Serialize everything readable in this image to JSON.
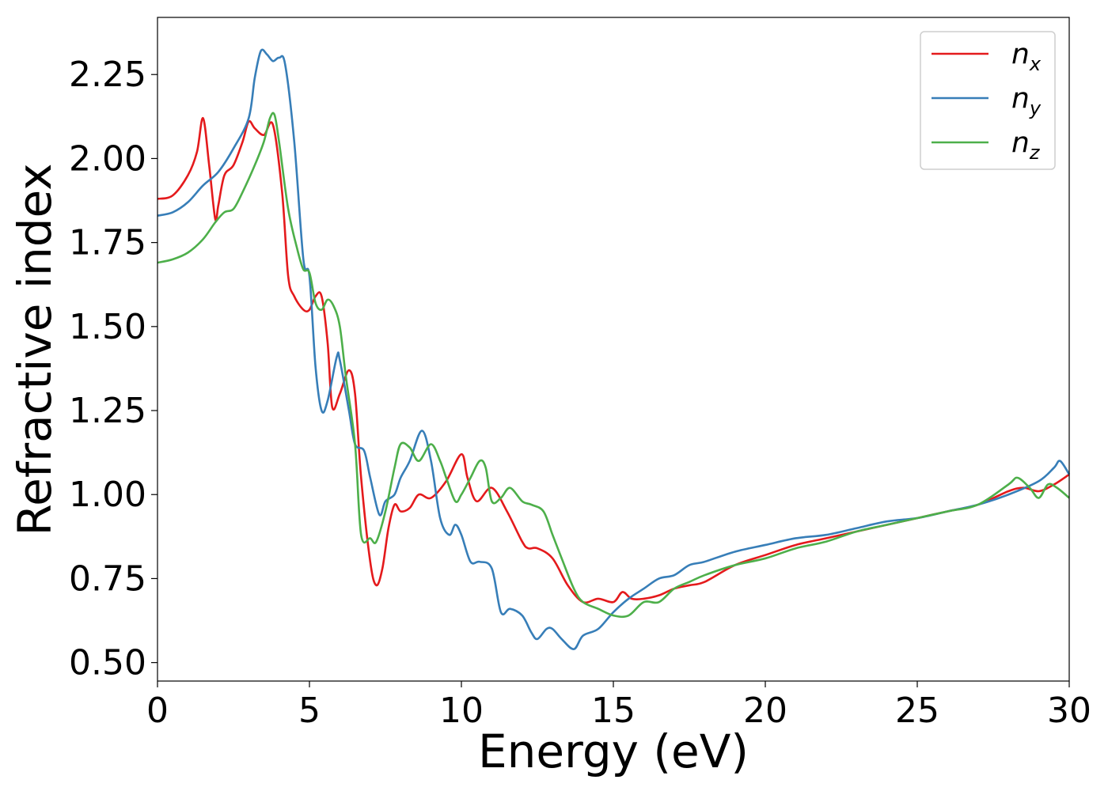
{
  "chart_data": {
    "type": "line",
    "title": "",
    "xlabel": "Energy (eV)",
    "ylabel": "Refractive index",
    "xlim": [
      0,
      30
    ],
    "ylim": [
      0.445,
      2.42
    ],
    "xticks": [
      0,
      5,
      10,
      15,
      20,
      25,
      30
    ],
    "xtick_labels": [
      "0",
      "5",
      "10",
      "15",
      "20",
      "25",
      "30"
    ],
    "yticks": [
      0.5,
      0.75,
      1.0,
      1.25,
      1.5,
      1.75,
      2.0,
      2.25
    ],
    "ytick_labels": [
      "0.50",
      "0.75",
      "1.00",
      "1.25",
      "1.50",
      "1.75",
      "2.00",
      "2.25"
    ],
    "grid": false,
    "legend_position": "top-right",
    "legend": [
      {
        "base": "n",
        "sub": "x",
        "color": "#e41a1c"
      },
      {
        "base": "n",
        "sub": "y",
        "color": "#377eb8"
      },
      {
        "base": "n",
        "sub": "z",
        "color": "#4daf4a"
      }
    ],
    "series": [
      {
        "name": "n_x",
        "color": "#e41a1c",
        "x": [
          0,
          0.5,
          1.0,
          1.3,
          1.5,
          1.7,
          1.9,
          2.0,
          2.2,
          2.5,
          2.8,
          3.0,
          3.2,
          3.5,
          3.8,
          4.1,
          4.3,
          4.5,
          4.8,
          5.0,
          5.2,
          5.4,
          5.6,
          5.75,
          6.0,
          6.3,
          6.5,
          6.7,
          7.0,
          7.2,
          7.4,
          7.6,
          7.8,
          8.0,
          8.3,
          8.6,
          9.0,
          9.5,
          10.0,
          10.2,
          10.5,
          11.0,
          11.5,
          12.0,
          12.2,
          12.5,
          13.0,
          13.5,
          14.0,
          14.5,
          15.0,
          15.3,
          15.6,
          16.0,
          16.5,
          17.0,
          17.5,
          18.0,
          19.0,
          20.0,
          21.0,
          22.0,
          23.0,
          24.0,
          25.0,
          26.0,
          27.0,
          28.0,
          28.5,
          29.0,
          29.5,
          30.0
        ],
        "y": [
          1.88,
          1.89,
          1.95,
          2.02,
          2.12,
          1.98,
          1.82,
          1.86,
          1.95,
          1.98,
          2.05,
          2.11,
          2.09,
          2.07,
          2.1,
          1.9,
          1.65,
          1.59,
          1.55,
          1.55,
          1.59,
          1.59,
          1.45,
          1.26,
          1.3,
          1.37,
          1.3,
          1.05,
          0.8,
          0.73,
          0.78,
          0.9,
          0.97,
          0.95,
          0.96,
          1.0,
          0.99,
          1.04,
          1.12,
          1.05,
          0.98,
          1.02,
          0.95,
          0.86,
          0.84,
          0.84,
          0.81,
          0.73,
          0.68,
          0.69,
          0.68,
          0.71,
          0.69,
          0.69,
          0.7,
          0.72,
          0.73,
          0.74,
          0.79,
          0.82,
          0.85,
          0.87,
          0.89,
          0.91,
          0.93,
          0.95,
          0.97,
          1.01,
          1.02,
          1.01,
          1.03,
          1.06
        ]
      },
      {
        "name": "n_y",
        "color": "#377eb8",
        "x": [
          0,
          0.5,
          1.0,
          1.5,
          2.0,
          2.5,
          3.0,
          3.2,
          3.4,
          3.6,
          3.8,
          4.0,
          4.2,
          4.5,
          4.8,
          5.0,
          5.2,
          5.4,
          5.6,
          5.9,
          6.0,
          6.3,
          6.5,
          6.8,
          7.0,
          7.3,
          7.5,
          7.8,
          8.0,
          8.3,
          8.7,
          9.0,
          9.3,
          9.6,
          9.8,
          10.0,
          10.3,
          10.6,
          11.0,
          11.3,
          11.6,
          12.0,
          12.3,
          12.5,
          12.8,
          13.0,
          13.3,
          13.7,
          14.0,
          14.5,
          15.0,
          15.5,
          16.0,
          16.5,
          17.0,
          17.5,
          18.0,
          19.0,
          20.0,
          21.0,
          22.0,
          23.0,
          24.0,
          25.0,
          26.0,
          27.0,
          28.0,
          29.0,
          29.5,
          29.7,
          30.0
        ],
        "y": [
          1.83,
          1.84,
          1.87,
          1.92,
          1.96,
          2.03,
          2.12,
          2.24,
          2.32,
          2.31,
          2.29,
          2.3,
          2.28,
          2.05,
          1.7,
          1.65,
          1.38,
          1.25,
          1.28,
          1.41,
          1.4,
          1.25,
          1.15,
          1.13,
          1.05,
          0.94,
          0.98,
          1.0,
          1.05,
          1.1,
          1.19,
          1.1,
          0.93,
          0.88,
          0.91,
          0.88,
          0.8,
          0.8,
          0.78,
          0.65,
          0.66,
          0.64,
          0.59,
          0.57,
          0.6,
          0.6,
          0.57,
          0.54,
          0.58,
          0.6,
          0.65,
          0.69,
          0.72,
          0.75,
          0.76,
          0.79,
          0.8,
          0.83,
          0.85,
          0.87,
          0.88,
          0.9,
          0.92,
          0.93,
          0.95,
          0.97,
          1.0,
          1.04,
          1.08,
          1.1,
          1.06
        ]
      },
      {
        "name": "n_z",
        "color": "#4daf4a",
        "x": [
          0,
          0.5,
          1.0,
          1.5,
          1.9,
          2.2,
          2.5,
          2.8,
          3.2,
          3.5,
          3.7,
          3.85,
          4.0,
          4.3,
          4.6,
          4.8,
          5.0,
          5.2,
          5.4,
          5.6,
          5.8,
          6.0,
          6.2,
          6.5,
          6.7,
          7.0,
          7.2,
          7.5,
          7.8,
          8.0,
          8.3,
          8.6,
          9.0,
          9.3,
          9.5,
          9.8,
          10.0,
          10.3,
          10.6,
          10.8,
          11.0,
          11.3,
          11.6,
          12.0,
          12.3,
          12.7,
          13.0,
          13.3,
          13.7,
          14.0,
          14.5,
          15.0,
          15.5,
          16.0,
          16.5,
          17.0,
          17.5,
          18.0,
          19.0,
          20.0,
          21.0,
          22.0,
          23.0,
          24.0,
          25.0,
          26.0,
          27.0,
          28.0,
          28.3,
          28.7,
          29.0,
          29.3,
          29.6,
          30.0
        ],
        "y": [
          1.69,
          1.7,
          1.72,
          1.76,
          1.81,
          1.84,
          1.85,
          1.9,
          1.98,
          2.05,
          2.12,
          2.13,
          2.05,
          1.85,
          1.73,
          1.67,
          1.66,
          1.57,
          1.55,
          1.58,
          1.56,
          1.5,
          1.35,
          1.15,
          0.88,
          0.87,
          0.86,
          0.95,
          1.08,
          1.15,
          1.14,
          1.1,
          1.15,
          1.1,
          1.05,
          0.98,
          1.0,
          1.05,
          1.1,
          1.08,
          0.98,
          0.99,
          1.02,
          0.98,
          0.97,
          0.95,
          0.88,
          0.81,
          0.72,
          0.68,
          0.66,
          0.64,
          0.64,
          0.68,
          0.68,
          0.72,
          0.74,
          0.76,
          0.79,
          0.81,
          0.84,
          0.86,
          0.89,
          0.91,
          0.93,
          0.95,
          0.97,
          1.03,
          1.05,
          1.02,
          0.99,
          1.03,
          1.02,
          0.99
        ]
      }
    ]
  }
}
